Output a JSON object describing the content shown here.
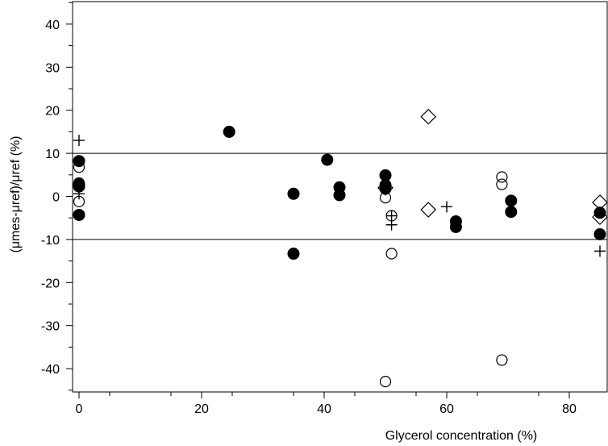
{
  "chart_data": {
    "type": "scatter",
    "title": "",
    "xlabel": "Glycerol concentration (%)",
    "ylabel": "(μmes-μref)/μref (%)",
    "xlim": [
      -1,
      85
    ],
    "ylim": [
      -45,
      45
    ],
    "x_ticks": [
      0,
      20,
      40,
      60,
      80
    ],
    "y_ticks": [
      40,
      30,
      20,
      10,
      0,
      -10,
      -20,
      -30,
      -40
    ],
    "reference_lines": [
      10,
      -10
    ],
    "grid": false,
    "series": [
      {
        "marker": "filled-circle",
        "points": [
          [
            0,
            8.2
          ],
          [
            0,
            2.8
          ],
          [
            0,
            2.3
          ],
          [
            0,
            -4.3
          ],
          [
            24.5,
            15.0
          ],
          [
            35,
            0.6
          ],
          [
            35,
            -13.3
          ],
          [
            40.5,
            8.5
          ],
          [
            42.5,
            2.1
          ],
          [
            42.5,
            0.3
          ],
          [
            50,
            4.9
          ],
          [
            50,
            2.6
          ],
          [
            50,
            1.8
          ],
          [
            61.5,
            -5.8
          ],
          [
            61.5,
            -7.1
          ],
          [
            70.5,
            -1.0
          ],
          [
            70.5,
            -3.6
          ],
          [
            85,
            -3.8
          ],
          [
            85,
            -8.8
          ]
        ]
      },
      {
        "marker": "open-circle",
        "points": [
          [
            0,
            6.8
          ],
          [
            0,
            3.1
          ],
          [
            0,
            -1.2
          ],
          [
            50,
            -0.3
          ],
          [
            51,
            -4.5
          ],
          [
            51,
            -13.3
          ],
          [
            50,
            -43.0
          ],
          [
            69,
            4.5
          ],
          [
            69,
            2.8
          ],
          [
            69,
            -38.0
          ]
        ]
      },
      {
        "marker": "open-diamond",
        "points": [
          [
            50,
            2.0
          ],
          [
            57,
            18.5
          ],
          [
            57,
            -3.1
          ],
          [
            85,
            -1.4
          ],
          [
            85,
            -4.8
          ]
        ]
      },
      {
        "marker": "plus",
        "points": [
          [
            0,
            13.0
          ],
          [
            0,
            0.6
          ],
          [
            50,
            2.3
          ],
          [
            51,
            -4.5
          ],
          [
            51,
            -6.6
          ],
          [
            60,
            -2.4
          ],
          [
            85,
            -12.7
          ]
        ]
      }
    ]
  }
}
